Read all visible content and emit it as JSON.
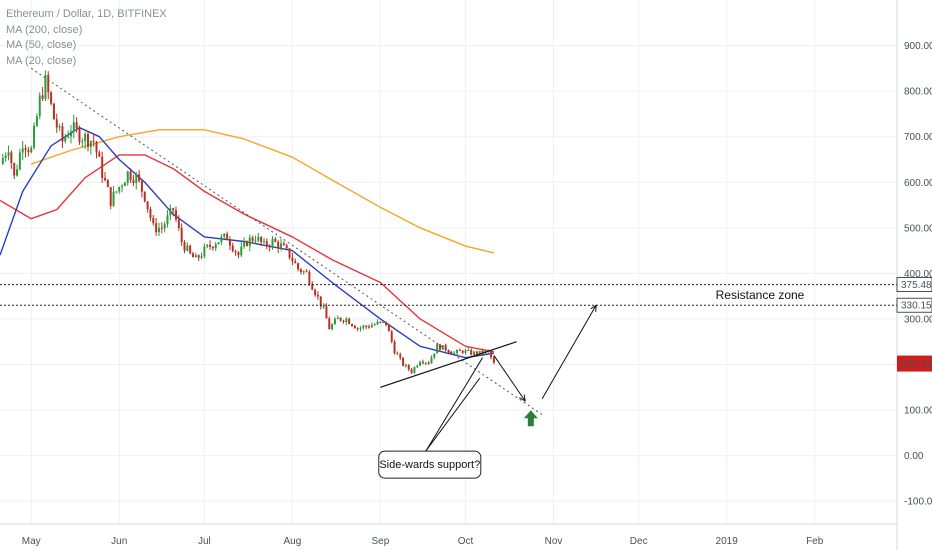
{
  "legend": {
    "symbol": "Ethereum / Dollar, 1D, BITFINEX",
    "ma_labels": [
      "MA (200, close)",
      "MA (50, close)",
      "MA (20, close)"
    ]
  },
  "colors": {
    "up": "#2b9a3a",
    "down": "#b8301f",
    "ma200": "#f5a623",
    "ma50": "#e8333a",
    "ma20": "#2c3ebd",
    "price_tag": "#cc1f1f",
    "arrow_up": "#2f7d3a"
  },
  "chart_data": {
    "type": "candlestick",
    "title": "Ethereum / Dollar, 1D, BITFINEX",
    "ylim": [
      -150,
      1000
    ],
    "x_range": [
      "2018-04-20",
      "2019-03-02"
    ],
    "y_ticks": [
      -100,
      0,
      100,
      200,
      300,
      400,
      500,
      600,
      700,
      800,
      900
    ],
    "y_tick_labels": [
      "-100.00",
      "0.00",
      "100.00",
      "",
      "300.00",
      "400.00",
      "500.00",
      "600.00",
      "700.00",
      "800.00",
      "900.00"
    ],
    "x_ticks": [
      {
        "date": "2018-05-01",
        "label": "May"
      },
      {
        "date": "2018-06-01",
        "label": "Jun"
      },
      {
        "date": "2018-07-01",
        "label": "Jul"
      },
      {
        "date": "2018-08-01",
        "label": "Aug"
      },
      {
        "date": "2018-09-01",
        "label": "Sep"
      },
      {
        "date": "2018-10-01",
        "label": "Oct"
      },
      {
        "date": "2018-11-01",
        "label": "Nov"
      },
      {
        "date": "2018-12-01",
        "label": "Dec"
      },
      {
        "date": "2019-01-01",
        "label": "2019"
      },
      {
        "date": "2019-02-01",
        "label": "Feb"
      }
    ],
    "price_path": [
      [
        "2018-04-20",
        640
      ],
      [
        "2018-04-23",
        680
      ],
      [
        "2018-04-25",
        610
      ],
      [
        "2018-04-28",
        690
      ],
      [
        "2018-05-01",
        670
      ],
      [
        "2018-05-04",
        780
      ],
      [
        "2018-05-06",
        820
      ],
      [
        "2018-05-09",
        740
      ],
      [
        "2018-05-12",
        690
      ],
      [
        "2018-05-15",
        720
      ],
      [
        "2018-05-19",
        700
      ],
      [
        "2018-05-23",
        690
      ],
      [
        "2018-05-26",
        620
      ],
      [
        "2018-05-29",
        560
      ],
      [
        "2018-06-01",
        590
      ],
      [
        "2018-06-04",
        620
      ],
      [
        "2018-06-07",
        610
      ],
      [
        "2018-06-10",
        570
      ],
      [
        "2018-06-13",
        500
      ],
      [
        "2018-06-16",
        500
      ],
      [
        "2018-06-20",
        540
      ],
      [
        "2018-06-23",
        470
      ],
      [
        "2018-06-26",
        440
      ],
      [
        "2018-06-28",
        430
      ],
      [
        "2018-07-01",
        450
      ],
      [
        "2018-07-05",
        470
      ],
      [
        "2018-07-09",
        480
      ],
      [
        "2018-07-13",
        440
      ],
      [
        "2018-07-16",
        470
      ],
      [
        "2018-07-19",
        480
      ],
      [
        "2018-07-22",
        460
      ],
      [
        "2018-07-25",
        470
      ],
      [
        "2018-07-28",
        460
      ],
      [
        "2018-07-31",
        440
      ],
      [
        "2018-08-03",
        410
      ],
      [
        "2018-08-06",
        400
      ],
      [
        "2018-08-09",
        360
      ],
      [
        "2018-08-12",
        320
      ],
      [
        "2018-08-14",
        280
      ],
      [
        "2018-08-17",
        300
      ],
      [
        "2018-08-20",
        300
      ],
      [
        "2018-08-24",
        280
      ],
      [
        "2018-08-28",
        285
      ],
      [
        "2018-08-31",
        290
      ],
      [
        "2018-09-03",
        290
      ],
      [
        "2018-09-06",
        230
      ],
      [
        "2018-09-09",
        200
      ],
      [
        "2018-09-12",
        185
      ],
      [
        "2018-09-15",
        210
      ],
      [
        "2018-09-18",
        205
      ],
      [
        "2018-09-21",
        240
      ],
      [
        "2018-09-24",
        235
      ],
      [
        "2018-09-27",
        225
      ],
      [
        "2018-09-30",
        230
      ],
      [
        "2018-10-03",
        225
      ],
      [
        "2018-10-06",
        225
      ],
      [
        "2018-10-09",
        228
      ],
      [
        "2018-10-11",
        202
      ]
    ],
    "moving_averages": {
      "ma200": [
        [
          "2018-05-01",
          640
        ],
        [
          "2018-05-15",
          670
        ],
        [
          "2018-06-01",
          700
        ],
        [
          "2018-06-15",
          715
        ],
        [
          "2018-07-01",
          715
        ],
        [
          "2018-07-15",
          695
        ],
        [
          "2018-08-01",
          655
        ],
        [
          "2018-08-15",
          605
        ],
        [
          "2018-09-01",
          545
        ],
        [
          "2018-09-15",
          500
        ],
        [
          "2018-10-01",
          460
        ],
        [
          "2018-10-11",
          445
        ]
      ],
      "ma50": [
        [
          "2018-04-20",
          560
        ],
        [
          "2018-05-01",
          520
        ],
        [
          "2018-05-10",
          540
        ],
        [
          "2018-05-20",
          610
        ],
        [
          "2018-06-01",
          660
        ],
        [
          "2018-06-10",
          660
        ],
        [
          "2018-06-20",
          630
        ],
        [
          "2018-07-01",
          580
        ],
        [
          "2018-07-15",
          530
        ],
        [
          "2018-08-01",
          480
        ],
        [
          "2018-08-15",
          430
        ],
        [
          "2018-09-01",
          380
        ],
        [
          "2018-09-15",
          300
        ],
        [
          "2018-10-01",
          240
        ],
        [
          "2018-10-11",
          228
        ]
      ],
      "ma20": [
        [
          "2018-04-20",
          440
        ],
        [
          "2018-04-28",
          580
        ],
        [
          "2018-05-08",
          680
        ],
        [
          "2018-05-18",
          720
        ],
        [
          "2018-05-25",
          700
        ],
        [
          "2018-06-01",
          650
        ],
        [
          "2018-06-10",
          600
        ],
        [
          "2018-06-20",
          530
        ],
        [
          "2018-07-01",
          480
        ],
        [
          "2018-07-15",
          470
        ],
        [
          "2018-08-01",
          450
        ],
        [
          "2018-08-15",
          380
        ],
        [
          "2018-09-01",
          300
        ],
        [
          "2018-09-15",
          240
        ],
        [
          "2018-10-01",
          215
        ],
        [
          "2018-10-11",
          225
        ]
      ]
    },
    "horizontal_levels": [
      {
        "value": 375.48,
        "label": "375.48"
      },
      {
        "value": 330.15,
        "label": "330.15"
      }
    ],
    "current_price": {
      "value": 202.1,
      "label": "202.10"
    },
    "annotations": {
      "resistance_label": "Resistance zone",
      "callout_text": "Side-wards support?"
    },
    "trendlines": {
      "downtrend": [
        [
          "2018-05-01",
          850
        ],
        [
          "2018-10-28",
          90
        ]
      ],
      "support": [
        [
          "2018-09-01",
          150
        ],
        [
          "2018-10-19",
          250
        ]
      ],
      "callout_pointers": [
        [
          [
            "2018-09-17",
            10
          ],
          [
            "2018-10-06",
            170
          ]
        ],
        [
          [
            "2018-09-17",
            10
          ],
          [
            "2018-10-07",
            215
          ]
        ]
      ],
      "projection": [
        [
          "2018-10-11",
          220
        ],
        [
          "2018-10-22",
          120
        ],
        [
          "2018-10-28",
          125
        ],
        [
          "2018-11-16",
          330
        ]
      ]
    },
    "up_marker": {
      "date": "2018-10-24",
      "value": 80
    },
    "grid": true
  }
}
